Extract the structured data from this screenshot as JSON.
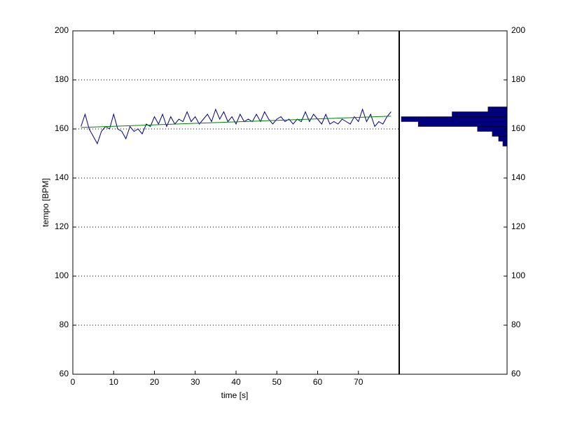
{
  "chart_data": [
    {
      "type": "line",
      "xlabel": "time [s]",
      "ylabel": "tempo [BPM]",
      "xlim": [
        0,
        80
      ],
      "xticks": [
        0,
        10,
        20,
        30,
        40,
        50,
        60,
        70
      ],
      "ylim": [
        60,
        200
      ],
      "yticks": [
        60,
        80,
        100,
        120,
        140,
        160,
        180,
        200
      ],
      "grid": true,
      "series": [
        {
          "color": "#00008b",
          "x": [
            2,
            3,
            4,
            5,
            6,
            7,
            8,
            9,
            10,
            11,
            12,
            13,
            14,
            15,
            16,
            17,
            18,
            19,
            20,
            21,
            22,
            23,
            24,
            25,
            26,
            27,
            28,
            29,
            30,
            31,
            32,
            33,
            34,
            35,
            36,
            37,
            38,
            39,
            40,
            41,
            42,
            43,
            44,
            45,
            46,
            47,
            48,
            49,
            50,
            51,
            52,
            53,
            54,
            55,
            56,
            57,
            58,
            59,
            60,
            61,
            62,
            63,
            64,
            65,
            66,
            67,
            68,
            69,
            70,
            71,
            72,
            73,
            74,
            75,
            76,
            77,
            78
          ],
          "values": [
            161,
            166,
            160,
            157,
            154,
            159,
            161,
            160,
            166,
            160,
            159,
            156,
            161,
            159,
            160,
            158,
            162,
            161,
            165,
            162,
            166,
            161,
            165,
            162,
            164,
            163,
            167,
            163,
            165,
            162,
            164,
            166,
            163,
            168,
            164,
            167,
            163,
            165,
            162,
            166,
            163,
            164,
            163,
            166,
            163,
            167,
            164,
            162,
            164,
            165,
            163,
            164,
            162,
            164,
            163,
            167,
            163,
            166,
            164,
            162,
            166,
            162,
            163,
            162,
            164,
            163,
            162,
            165,
            163,
            168,
            163,
            166,
            161,
            163,
            162,
            165,
            167
          ]
        },
        {
          "color": "#008000",
          "x": [
            2,
            78
          ],
          "values": [
            160.6,
            165.2
          ]
        }
      ]
    },
    {
      "type": "histogram",
      "orientation": "horizontal",
      "reversed": true,
      "color": "#000080",
      "bins": [
        153,
        155,
        157,
        159,
        161,
        163,
        165,
        167,
        169
      ],
      "counts": [
        2,
        4,
        7,
        14,
        42,
        50,
        26,
        9
      ],
      "xlim": [
        0,
        51
      ],
      "ylim": [
        60,
        200
      ],
      "yticks": [
        60,
        80,
        100,
        120,
        140,
        160,
        180,
        200
      ]
    }
  ]
}
